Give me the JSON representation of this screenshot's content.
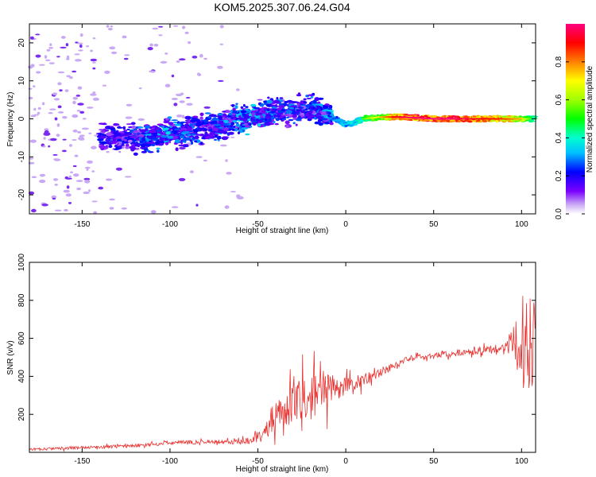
{
  "title": "KOM5.2025.307.06.24.G04",
  "chart_data": [
    {
      "type": "heatmap",
      "xlabel": "Height of straight line (km)",
      "ylabel": "Frequency (Hz)",
      "xlim": [
        -180,
        108
      ],
      "ylim": [
        -25,
        25
      ],
      "xticks": [
        -150,
        -100,
        -50,
        0,
        50,
        100
      ],
      "yticks": [
        -20,
        -10,
        0,
        10,
        20
      ],
      "colorbar": {
        "label": "Normalized spectral amplitude",
        "range": [
          0,
          1
        ],
        "ticks": [
          0.0,
          0.2,
          0.4,
          0.6,
          0.8
        ]
      },
      "ridge": {
        "x": [
          -125,
          -115,
          -100,
          -90,
          -75,
          -60,
          -50,
          -40,
          -30,
          -20,
          -10,
          0,
          5,
          10,
          20,
          30,
          40,
          50,
          60,
          70,
          80,
          90,
          100,
          105
        ],
        "y": [
          -5,
          -5,
          -4,
          -3,
          -2,
          0,
          1,
          2,
          2,
          2.5,
          1,
          -1.5,
          -1,
          0,
          0.5,
          0.5,
          0.3,
          0,
          0,
          0,
          0,
          0,
          0,
          0
        ],
        "amplitude": [
          0.2,
          0.3,
          0.3,
          0.25,
          0.25,
          0.3,
          0.3,
          0.25,
          0.25,
          0.25,
          0.3,
          0.35,
          0.4,
          0.5,
          0.7,
          0.9,
          0.95,
          0.95,
          0.95,
          0.9,
          0.85,
          0.8,
          0.7,
          0.5
        ]
      }
    },
    {
      "type": "line",
      "xlabel": "Height of straight line (km)",
      "ylabel": "SNR (v/v)",
      "xlim": [
        -180,
        108
      ],
      "ylim": [
        0,
        1000
      ],
      "xticks": [
        -150,
        -100,
        -50,
        0,
        50,
        100
      ],
      "yticks": [
        200,
        400,
        600,
        800,
        1000
      ],
      "color": "#e8322f",
      "trend": {
        "x": [
          -180,
          -150,
          -120,
          -100,
          -80,
          -60,
          -50,
          -40,
          -30,
          -20,
          -10,
          0,
          10,
          20,
          30,
          40,
          50,
          60,
          70,
          80,
          90,
          95,
          100,
          105,
          108
        ],
        "y": [
          15,
          25,
          35,
          50,
          55,
          55,
          80,
          180,
          250,
          300,
          330,
          350,
          380,
          420,
          470,
          500,
          510,
          520,
          530,
          540,
          550,
          560,
          580,
          600,
          620
        ]
      },
      "noise": {
        "x": [
          -180,
          -60,
          -50,
          -40,
          -30,
          -20,
          -10,
          0,
          20,
          40,
          90,
          95,
          100,
          105,
          108
        ],
        "amp": [
          8,
          15,
          40,
          90,
          140,
          160,
          130,
          60,
          30,
          20,
          25,
          120,
          300,
          350,
          300
        ]
      }
    }
  ]
}
